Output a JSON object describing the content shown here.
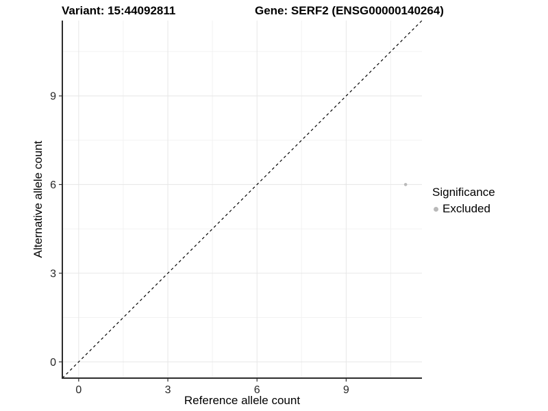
{
  "chart_data": {
    "type": "scatter",
    "title_left": "Variant: 15:44092811",
    "title_right": "Gene: SERF2 (ENSG00000140264)",
    "xlabel": "Reference allele count",
    "ylabel": "Alternative allele count",
    "xlim": [
      -0.55,
      11.55
    ],
    "ylim": [
      -0.55,
      11.55
    ],
    "xticks": [
      0,
      3,
      6,
      9
    ],
    "yticks": [
      0,
      3,
      6,
      9
    ],
    "xminor": [
      1.5,
      4.5,
      7.5,
      10.5
    ],
    "yminor": [
      1.5,
      4.5,
      7.5,
      10.5
    ],
    "grid": "major+minor",
    "legend": {
      "title": "Significance",
      "position": "right"
    },
    "series": [
      {
        "name": "Excluded",
        "color": "#b9b9b9",
        "points": [
          {
            "x": 11,
            "y": 6
          }
        ]
      }
    ],
    "identity_line": {
      "from": [
        -0.55,
        -0.55
      ],
      "to": [
        11.55,
        11.55
      ],
      "style": "dashed",
      "color": "#000000"
    },
    "point_radius": 2.3,
    "style": {
      "axis_color": "#2b2b2b",
      "grid_major_color": "#e6e6e6",
      "grid_minor_color": "#f2f2f2",
      "tick_label_color": "#262626",
      "tick_label_size": 16
    }
  }
}
